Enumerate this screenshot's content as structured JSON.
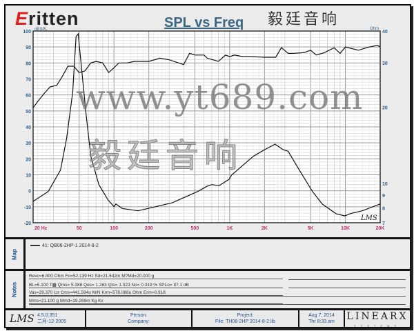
{
  "logo": {
    "brand": "Eritten",
    "brand_initial": "E",
    "brand_rest": "ritten",
    "chinese": "毅廷音响"
  },
  "watermark": {
    "chinese": "毅廷音响",
    "url": "www.yt689.com"
  },
  "chart_data": {
    "type": "line",
    "title": "SPL vs Freq",
    "xlabel": "Hz",
    "ylabel": "dBSPL",
    "y2label": "Ohm",
    "xscale": "log",
    "xlim": [
      20,
      20000
    ],
    "ylim": [
      -20,
      100
    ],
    "y2lim": [
      7,
      40
    ],
    "y2scale": "log",
    "grid": true,
    "x_ticks": [
      20,
      50,
      100,
      200,
      500,
      1000,
      2000,
      5000,
      10000,
      20000
    ],
    "x_tick_labels": [
      "20  Hz",
      "50",
      "100",
      "200",
      "500",
      "1K",
      "2K",
      "5K",
      "10K",
      "20K"
    ],
    "y_ticks": [
      100,
      90,
      80,
      70,
      60,
      50,
      40,
      30,
      20,
      10,
      0,
      -10,
      -20
    ],
    "y2_ticks": [
      40,
      30,
      20,
      10,
      9,
      8,
      7
    ],
    "annotation": "LMS",
    "series": [
      {
        "axis": "left",
        "unit": "dBSPL",
        "x": [
          20,
          22,
          25,
          28,
          32,
          36,
          40,
          45,
          50,
          56,
          63,
          70,
          80,
          90,
          100,
          110,
          130,
          150,
          200,
          250,
          300,
          400,
          450,
          500,
          600,
          640,
          800,
          920,
          1000,
          1100,
          1300,
          1500,
          2000,
          2500,
          2800,
          3200,
          3600,
          4400,
          5000,
          5600,
          6500,
          8000,
          9000,
          10000,
          13000,
          16000,
          19000,
          20000
        ],
        "y": [
          52,
          56,
          61,
          65,
          66,
          72,
          78,
          78,
          74,
          75,
          80,
          81,
          80,
          74,
          77,
          80,
          80,
          81,
          81,
          83,
          82,
          79,
          86,
          85,
          85,
          83,
          81,
          85,
          84,
          85,
          84,
          84,
          83.6,
          83.6,
          89.6,
          86,
          86,
          86.5,
          88,
          85,
          86.3,
          89.5,
          86,
          90,
          88,
          90,
          91,
          90
        ]
      },
      {
        "axis": "right",
        "unit": "Ohm",
        "x": [
          20,
          27,
          34.5,
          39,
          44,
          47,
          49,
          52.5,
          57.5,
          63,
          74,
          89,
          100,
          104,
          118,
          161,
          204,
          320,
          530,
          637,
          700,
          810,
          990,
          1040,
          1600,
          2000,
          2470,
          2900,
          3200,
          4000,
          5200,
          6300,
          8300,
          9900,
          11000,
          14000,
          20000
        ],
        "y": [
          8.5,
          9.3,
          11.3,
          15.1,
          23,
          38,
          39,
          28.3,
          18.6,
          12.8,
          9.9,
          8.6,
          8.1,
          8.3,
          7.97,
          7.8,
          8.0,
          8.4,
          9.3,
          9.75,
          9.9,
          9.8,
          10.4,
          10.8,
          12.8,
          13.6,
          14.3,
          13.6,
          13.4,
          11.3,
          9.3,
          8.3,
          7.6,
          7.45,
          7.6,
          7.8,
          8.3
        ]
      }
    ]
  },
  "map": {
    "side_label": "Map",
    "legend_entry": "41: QB08-2HP-1    2014-8-2"
  },
  "notes": {
    "side_label": "Notes",
    "lines": [
      "Revc=6.800 Ohm  Fo=52.139 Hz  Sd=21.642m M?Md=20.000 g",
      "BL=6.100 T▩  Qms= 5.388  Qes= 1.263  Qts= 1.023  No= 0.319 %  SPLo= 87.1 dB",
      "Vas=29.370 Ltr  Cms=441.594u M/N  Krm=578.088u Ohm  Erm=0.918",
      "Mms=21.100 g  Mmd=19.269m Kg  Kx"
    ]
  },
  "footer": {
    "lms_logo": "LMS",
    "version": "4.5.0.351",
    "version_date": "二月-12-2005",
    "person_label": "Person:",
    "company_label": "Company:",
    "project_label": "Project:",
    "file": "File: TH08-2HP    2014-8-2.lib",
    "date": "Aug  7, 2014",
    "time": "Thr  8:33 am",
    "brand": "LINEARX",
    "brand_sub": "SYSTEMS"
  },
  "colors": {
    "title": "#3b6784",
    "axis_labels": "#2f5f8f",
    "x_tick_labels": "#c0306a",
    "curve": "#111111",
    "logo_red": "#e0201c"
  }
}
